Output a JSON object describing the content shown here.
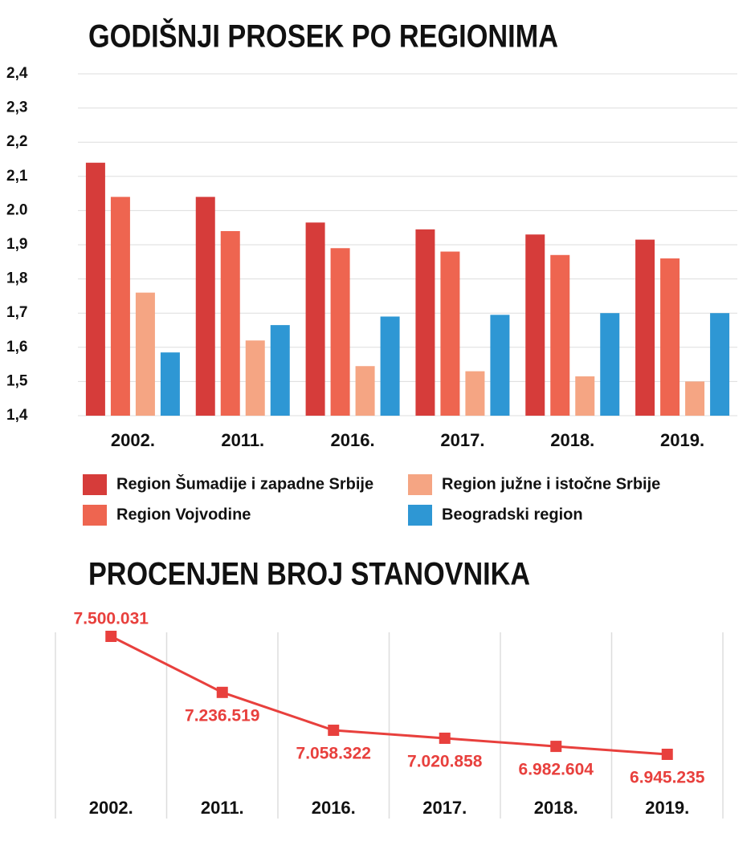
{
  "chart_data": [
    {
      "type": "bar",
      "title": "GODIŠNJI PROSEK PO REGIONIMA",
      "categories": [
        "2002.",
        "2011.",
        "2016.",
        "2017.",
        "2018.",
        "2019."
      ],
      "series": [
        {
          "name": "Region Šumadije i zapadne Srbije",
          "color": "#d63c3a",
          "values": [
            2.14,
            2.04,
            1.965,
            1.945,
            1.93,
            1.915
          ]
        },
        {
          "name": "Region Vojvodine",
          "color": "#ee6550",
          "values": [
            2.04,
            1.94,
            1.89,
            1.88,
            1.87,
            1.86
          ]
        },
        {
          "name": "Region južne i istočne Srbije",
          "color": "#f5a583",
          "values": [
            1.76,
            1.62,
            1.545,
            1.53,
            1.515,
            1.5
          ]
        },
        {
          "name": "Beogradski region",
          "color": "#2e97d4",
          "values": [
            1.585,
            1.665,
            1.69,
            1.695,
            1.7,
            1.7
          ]
        }
      ],
      "ylim": [
        1.4,
        2.4
      ],
      "yticks": [
        {
          "value": 1.4,
          "label": "1,4"
        },
        {
          "value": 1.5,
          "label": "1,5"
        },
        {
          "value": 1.6,
          "label": "1,6"
        },
        {
          "value": 1.7,
          "label": "1,7"
        },
        {
          "value": 1.8,
          "label": "1,8"
        },
        {
          "value": 1.9,
          "label": "1,9"
        },
        {
          "value": 2.0,
          "label": "2.0"
        },
        {
          "value": 2.1,
          "label": "2,1"
        },
        {
          "value": 2.2,
          "label": "2,2"
        },
        {
          "value": 2.3,
          "label": "2,3"
        },
        {
          "value": 2.4,
          "label": "2,4"
        }
      ],
      "grid": true
    },
    {
      "type": "line",
      "title": "PROCENJEN BROJ STANOVNIKA",
      "categories": [
        "2002.",
        "2011.",
        "2016.",
        "2017.",
        "2018.",
        "2019."
      ],
      "values": [
        7500031,
        7236519,
        7058322,
        7020858,
        6982604,
        6945235
      ],
      "value_labels": [
        "7.500.031",
        "7.236.519",
        "7.058.322",
        "7.020.858",
        "6.982.604",
        "6.945.235"
      ],
      "color": "#e8403d"
    }
  ]
}
